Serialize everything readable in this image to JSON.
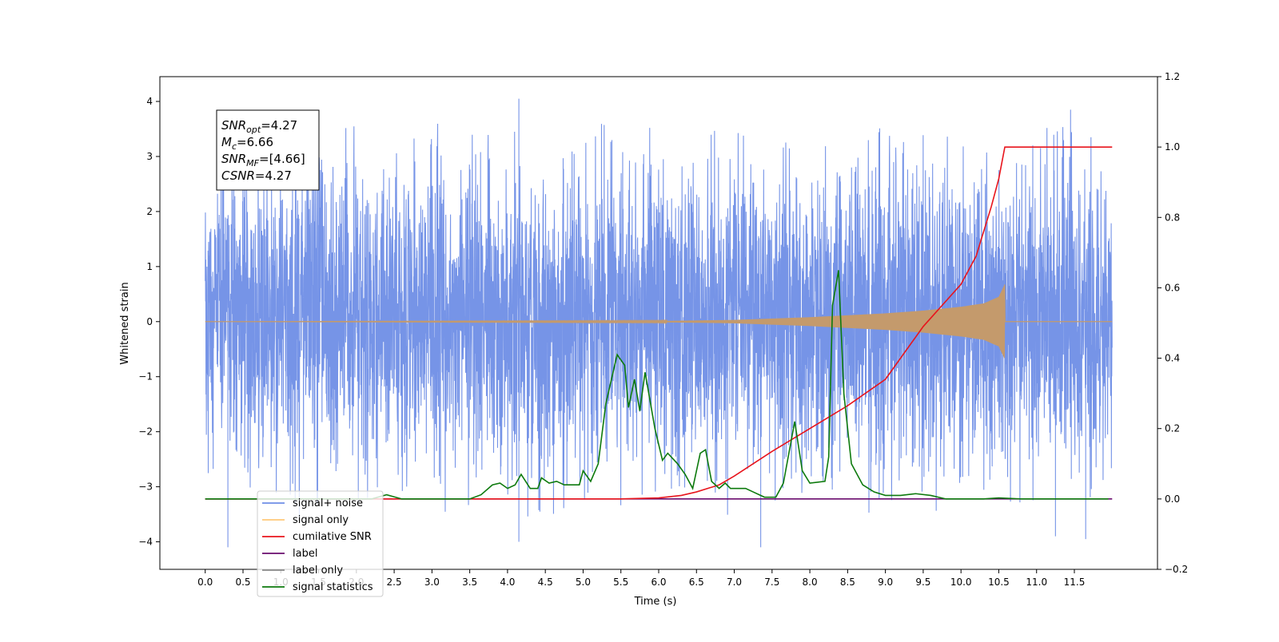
{
  "chart_data": {
    "type": "line",
    "xlabel": "Time (s)",
    "ylabel": "Whitened strain",
    "x_ticks": [
      0.0,
      0.5,
      1.0,
      1.5,
      2.0,
      2.5,
      3.0,
      3.5,
      4.0,
      4.5,
      5.0,
      5.5,
      6.0,
      6.5,
      7.0,
      7.5,
      8.0,
      8.5,
      9.0,
      9.5,
      10.0,
      10.5,
      11.0,
      11.5
    ],
    "x_tick_labels": [
      "0.0",
      "0.5",
      "1.0",
      "1.5",
      "2.0",
      "2.5",
      "3.0",
      "3.5",
      "4.0",
      "4.5",
      "5.0",
      "5.5",
      "6.0",
      "6.5",
      "7.0",
      "7.5",
      "8.0",
      "8.5",
      "9.0",
      "9.5",
      "10.0",
      "10.5",
      "11.0",
      "11.5"
    ],
    "xlim": [
      -0.6,
      12.6
    ],
    "ylim_left": [
      -4.5,
      4.45
    ],
    "y_ticks_left": [
      -4,
      -3,
      -2,
      -1,
      0,
      1,
      2,
      3,
      4
    ],
    "y_tick_labels_left": [
      "−4",
      "−3",
      "−2",
      "−1",
      "0",
      "1",
      "2",
      "3",
      "4"
    ],
    "ylim_right": [
      -0.2,
      1.2
    ],
    "y_ticks_right": [
      -0.2,
      0.0,
      0.2,
      0.4,
      0.6,
      0.8,
      1.0,
      1.2
    ],
    "y_tick_labels_right": [
      "−0.2",
      "0.0",
      "0.2",
      "0.4",
      "0.6",
      "0.8",
      "1.0",
      "1.2"
    ],
    "annotation": {
      "lines": [
        {
          "base": "SNR",
          "sub": "opt",
          "rest": "=4.27"
        },
        {
          "base": "M",
          "sub": "c",
          "rest": "=6.66"
        },
        {
          "base": "SNR",
          "sub": "MF",
          "rest": "=[4.66]"
        },
        {
          "base": "CSNR",
          "sub": "",
          "rest": "=4.27"
        }
      ]
    },
    "legend": {
      "placement": "lower-left",
      "entries": [
        {
          "label": "signal+ noise",
          "color": "#6f8ee6"
        },
        {
          "label": "signal only",
          "color": "#ffc87a"
        },
        {
          "label": "cumilative SNR",
          "color": "#e8141c"
        },
        {
          "label": "label",
          "color": "#6a0c6e"
        },
        {
          "label": "label only",
          "color": "#8a8a8a"
        },
        {
          "label": "signal statistics",
          "color": "#0d7a0d"
        }
      ]
    },
    "series": [
      {
        "name": "signal+ noise",
        "axis": "left",
        "color": "#6f8ee6",
        "x_range": [
          0.0,
          12.0
        ],
        "typical_envelope": [
          -2.3,
          2.5
        ],
        "notable_peaks": [
          [
            4.15,
            4.05
          ],
          [
            11.45,
            3.85
          ],
          [
            0.3,
            -4.1
          ],
          [
            7.35,
            -4.1
          ],
          [
            4.15,
            -4.0
          ],
          [
            11.25,
            -3.9
          ],
          [
            11.65,
            -3.95
          ]
        ]
      },
      {
        "name": "signal only",
        "axis": "left",
        "color": "#c49a6c",
        "x_range": [
          0.0,
          12.0
        ],
        "chirp_end": 10.58,
        "envelope": [
          [
            0.0,
            0.0
          ],
          [
            6.0,
            0.01
          ],
          [
            7.0,
            0.03
          ],
          [
            8.0,
            0.08
          ],
          [
            9.0,
            0.15
          ],
          [
            9.5,
            0.2
          ],
          [
            10.0,
            0.27
          ],
          [
            10.3,
            0.33
          ],
          [
            10.5,
            0.45
          ],
          [
            10.58,
            0.68
          ],
          [
            10.6,
            0.0
          ],
          [
            12.0,
            0.0
          ]
        ]
      },
      {
        "name": "cumilative SNR",
        "axis": "right",
        "color": "#e8141c",
        "points": [
          [
            0.0,
            0.0
          ],
          [
            5.5,
            0.0
          ],
          [
            6.0,
            0.003
          ],
          [
            6.3,
            0.01
          ],
          [
            6.5,
            0.02
          ],
          [
            6.8,
            0.04
          ],
          [
            7.0,
            0.065
          ],
          [
            7.5,
            0.135
          ],
          [
            8.0,
            0.2
          ],
          [
            8.5,
            0.265
          ],
          [
            9.0,
            0.34
          ],
          [
            9.5,
            0.49
          ],
          [
            10.0,
            0.61
          ],
          [
            10.2,
            0.69
          ],
          [
            10.4,
            0.83
          ],
          [
            10.5,
            0.91
          ],
          [
            10.58,
            1.0
          ],
          [
            12.0,
            1.0
          ]
        ]
      },
      {
        "name": "label",
        "axis": "right",
        "color": "#6a0c6e",
        "points": [
          [
            0.0,
            0.0
          ],
          [
            12.0,
            0.0
          ]
        ]
      },
      {
        "name": "signal statistics",
        "axis": "right",
        "color": "#0d7a0d",
        "points": [
          [
            0.0,
            0.0
          ],
          [
            2.2,
            0.0
          ],
          [
            2.4,
            0.012
          ],
          [
            2.6,
            0.0
          ],
          [
            3.5,
            0.0
          ],
          [
            3.65,
            0.012
          ],
          [
            3.8,
            0.04
          ],
          [
            3.9,
            0.045
          ],
          [
            4.0,
            0.03
          ],
          [
            4.1,
            0.04
          ],
          [
            4.18,
            0.07
          ],
          [
            4.3,
            0.03
          ],
          [
            4.4,
            0.03
          ],
          [
            4.45,
            0.06
          ],
          [
            4.55,
            0.045
          ],
          [
            4.65,
            0.05
          ],
          [
            4.75,
            0.04
          ],
          [
            4.85,
            0.04
          ],
          [
            4.95,
            0.04
          ],
          [
            5.0,
            0.08
          ],
          [
            5.1,
            0.05
          ],
          [
            5.2,
            0.1
          ],
          [
            5.3,
            0.27
          ],
          [
            5.45,
            0.41
          ],
          [
            5.55,
            0.38
          ],
          [
            5.6,
            0.26
          ],
          [
            5.68,
            0.34
          ],
          [
            5.75,
            0.25
          ],
          [
            5.82,
            0.36
          ],
          [
            5.95,
            0.2
          ],
          [
            6.05,
            0.11
          ],
          [
            6.12,
            0.13
          ],
          [
            6.25,
            0.1
          ],
          [
            6.35,
            0.07
          ],
          [
            6.45,
            0.03
          ],
          [
            6.55,
            0.13
          ],
          [
            6.62,
            0.14
          ],
          [
            6.7,
            0.05
          ],
          [
            6.8,
            0.03
          ],
          [
            6.88,
            0.045
          ],
          [
            6.95,
            0.03
          ],
          [
            7.05,
            0.03
          ],
          [
            7.15,
            0.03
          ],
          [
            7.25,
            0.02
          ],
          [
            7.4,
            0.005
          ],
          [
            7.55,
            0.005
          ],
          [
            7.65,
            0.045
          ],
          [
            7.8,
            0.22
          ],
          [
            7.9,
            0.08
          ],
          [
            8.0,
            0.045
          ],
          [
            8.2,
            0.05
          ],
          [
            8.25,
            0.12
          ],
          [
            8.3,
            0.55
          ],
          [
            8.38,
            0.65
          ],
          [
            8.45,
            0.3
          ],
          [
            8.55,
            0.1
          ],
          [
            8.7,
            0.04
          ],
          [
            8.85,
            0.02
          ],
          [
            9.0,
            0.01
          ],
          [
            9.2,
            0.01
          ],
          [
            9.4,
            0.015
          ],
          [
            9.6,
            0.01
          ],
          [
            9.8,
            0.0
          ],
          [
            10.3,
            0.0
          ],
          [
            10.5,
            0.003
          ],
          [
            10.8,
            0.0
          ],
          [
            11.95,
            0.0
          ]
        ]
      }
    ]
  }
}
